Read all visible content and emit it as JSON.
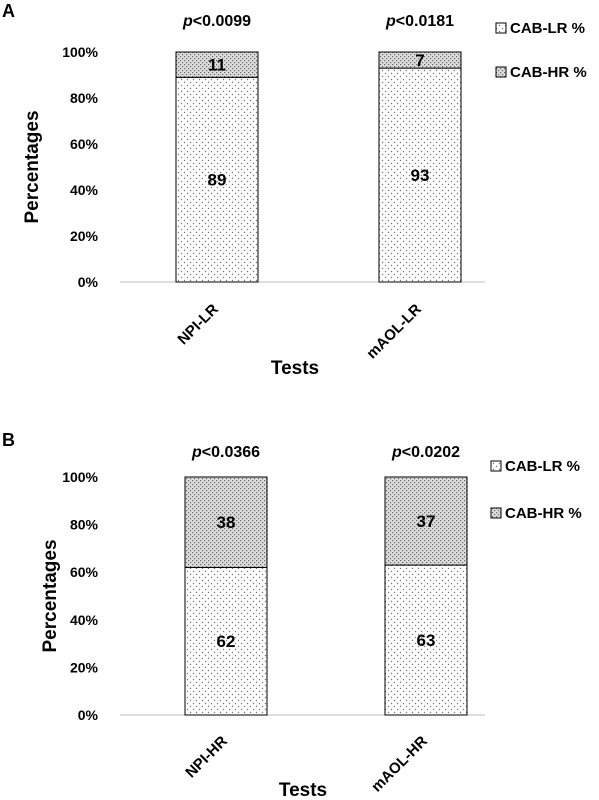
{
  "chart_data": [
    {
      "panel": "A",
      "type": "bar",
      "stacked": true,
      "categories": [
        "NPI-LR",
        "mAOL-LR"
      ],
      "series": [
        {
          "name": "CAB-LR %",
          "values": [
            89,
            93
          ]
        },
        {
          "name": "CAB-HR %",
          "values": [
            11,
            7
          ]
        }
      ],
      "segment_labels": [
        [
          "89",
          "11"
        ],
        [
          "93",
          "7"
        ]
      ],
      "annotations": [
        {
          "prefix": "p",
          "text": "<0.0099"
        },
        {
          "prefix": "p",
          "text": "<0.0181"
        }
      ],
      "xlabel": "Tests",
      "ylabel": "Percentages",
      "ylim": [
        0,
        100
      ],
      "yticks": [
        "0%",
        "20%",
        "40%",
        "60%",
        "80%",
        "100%"
      ],
      "legend_position": "top-right"
    },
    {
      "panel": "B",
      "type": "bar",
      "stacked": true,
      "categories": [
        "NPI-HR",
        "mAOL-HR"
      ],
      "series": [
        {
          "name": "CAB-LR %",
          "values": [
            62,
            63
          ]
        },
        {
          "name": "CAB-HR %",
          "values": [
            38,
            37
          ]
        }
      ],
      "segment_labels": [
        [
          "62",
          "38"
        ],
        [
          "63",
          "37"
        ]
      ],
      "annotations": [
        {
          "prefix": "p",
          "text": "<0.0366"
        },
        {
          "prefix": "p",
          "text": "<0.0202"
        }
      ],
      "xlabel": "Tests",
      "ylabel": "Percentages",
      "ylim": [
        0,
        100
      ],
      "yticks": [
        "0%",
        "20%",
        "40%",
        "60%",
        "80%",
        "100%"
      ],
      "legend_position": "top-right"
    }
  ]
}
